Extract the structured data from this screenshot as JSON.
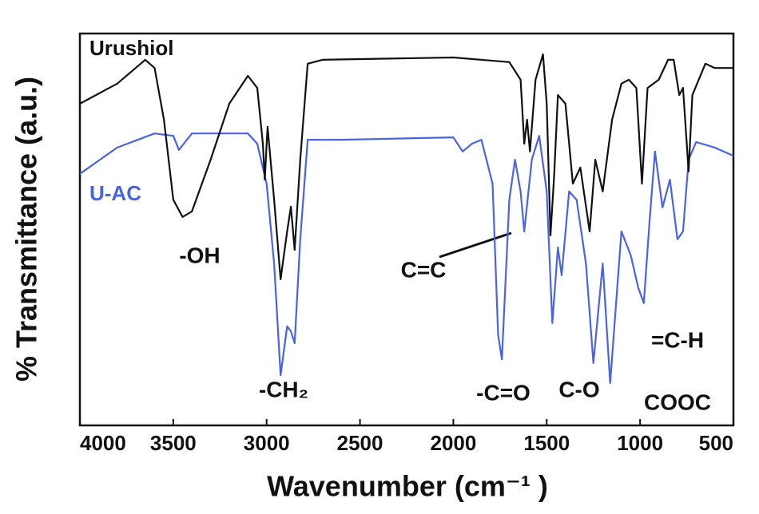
{
  "chart_data": {
    "type": "line",
    "x_label": "Wavenumber (cm⁻¹ )",
    "y_label": "% Transmittance (a.u.)",
    "xlim": [
      4000,
      500
    ],
    "xticks": [
      4000,
      3500,
      3000,
      2500,
      2000,
      1500,
      1000,
      500
    ],
    "ylim": [
      0,
      100
    ],
    "series": [
      {
        "name": "Urushiol",
        "color": "#111111",
        "x": [
          4000,
          3800,
          3650,
          3600,
          3550,
          3500,
          3450,
          3400,
          3300,
          3200,
          3100,
          3050,
          3020,
          3010,
          2995,
          2960,
          2925,
          2890,
          2870,
          2850,
          2820,
          2780,
          2700,
          2000,
          1700,
          1640,
          1620,
          1605,
          1590,
          1560,
          1520,
          1500,
          1480,
          1460,
          1440,
          1400,
          1360,
          1320,
          1270,
          1240,
          1200,
          1150,
          1100,
          1060,
          1020,
          990,
          960,
          900,
          850,
          820,
          790,
          770,
          740,
          720,
          650,
          600,
          500
        ],
        "values": [
          82.1,
          87.2,
          93.3,
          91.2,
          78.0,
          57.6,
          53.2,
          54.6,
          67.8,
          82.1,
          89.2,
          86.1,
          71.9,
          62.7,
          76.2,
          57.6,
          37.3,
          49.5,
          55.8,
          44.8,
          67.8,
          92.3,
          93.3,
          93.9,
          92.7,
          88.2,
          71.9,
          78.0,
          69.9,
          88.2,
          94.7,
          82.1,
          48.5,
          63.7,
          84.3,
          82.1,
          61.7,
          65.8,
          49.5,
          67.8,
          59.7,
          78.0,
          87.2,
          88.2,
          86.1,
          61.7,
          86.1,
          88.2,
          93.3,
          93.3,
          84.3,
          86.1,
          64.8,
          84.3,
          92.3,
          91.2,
          91.2
        ]
      },
      {
        "name": "U-AC",
        "color": "#4a63e0",
        "x": [
          4000,
          3800,
          3600,
          3500,
          3470,
          3400,
          3100,
          3050,
          3000,
          2960,
          2925,
          2890,
          2870,
          2850,
          2820,
          2780,
          2600,
          2000,
          1950,
          1900,
          1850,
          1790,
          1760,
          1740,
          1700,
          1670,
          1640,
          1620,
          1580,
          1540,
          1500,
          1470,
          1440,
          1420,
          1380,
          1340,
          1290,
          1250,
          1200,
          1160,
          1100,
          1050,
          1010,
          980,
          950,
          920,
          880,
          840,
          800,
          770,
          740,
          700,
          600,
          500
        ],
        "values": [
          64.2,
          70.9,
          74.5,
          73.9,
          70.3,
          74.5,
          74.5,
          71.9,
          61.7,
          41.3,
          12.8,
          25.3,
          24.0,
          21.0,
          47.5,
          72.9,
          72.9,
          73.5,
          69.9,
          71.9,
          72.9,
          61.7,
          23.0,
          16.9,
          57.6,
          67.8,
          59.7,
          49.5,
          67.8,
          73.9,
          59.7,
          26.1,
          45.4,
          38.3,
          59.7,
          57.6,
          41.3,
          15.9,
          41.3,
          10.8,
          49.5,
          43.4,
          35.2,
          31.2,
          51.5,
          69.9,
          55.6,
          62.7,
          47.5,
          49.5,
          67.8,
          72.3,
          70.9,
          68.8
        ]
      }
    ],
    "annotations": [
      "-OH",
      "-CH₂",
      "C=C",
      "-C=O",
      "C-O",
      "=C-H",
      "COOC"
    ]
  }
}
